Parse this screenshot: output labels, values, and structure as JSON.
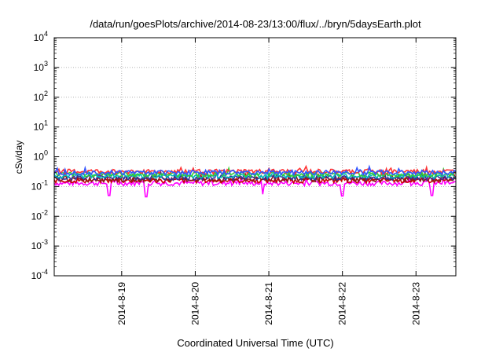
{
  "chart_data": {
    "type": "line",
    "title": "/data/run/goesPlots/archive/2014-08-23/13:00/flux/../bryn/5daysEarth.plot",
    "xlabel": "Coordinated Universal Time (UTC)",
    "ylabel": "cSv/day",
    "yscale": "log",
    "ylim": [
      0.0001,
      10000
    ],
    "xlim": [
      "2014-08-18 02:00",
      "2014-08-23 13:00"
    ],
    "y_ticks": [
      {
        "base": "10",
        "exp": "-4",
        "value": 0.0001
      },
      {
        "base": "10",
        "exp": "-3",
        "value": 0.001
      },
      {
        "base": "10",
        "exp": "-2",
        "value": 0.01
      },
      {
        "base": "10",
        "exp": "-1",
        "value": 0.1
      },
      {
        "base": "10",
        "exp": "0",
        "value": 1
      },
      {
        "base": "10",
        "exp": "1",
        "value": 10
      },
      {
        "base": "10",
        "exp": "2",
        "value": 100
      },
      {
        "base": "10",
        "exp": "3",
        "value": 1000
      },
      {
        "base": "10",
        "exp": "4",
        "value": 10000
      }
    ],
    "x_ticks": [
      {
        "label": "2014-8-19",
        "value": "2014-08-19 00:00"
      },
      {
        "label": "2014-8-20",
        "value": "2014-08-20 00:00"
      },
      {
        "label": "2014-8-21",
        "value": "2014-08-21 00:00"
      },
      {
        "label": "2014-8-22",
        "value": "2014-08-22 00:00"
      },
      {
        "label": "2014-8-23",
        "value": "2014-08-23 00:00"
      }
    ],
    "grid": true,
    "legend": "none",
    "series": [
      {
        "color": "#ff00ff",
        "level": 0.13,
        "dips": [
          [
            "2014-08-18 20:00",
            0.05
          ],
          [
            "2014-08-19 08:00",
            0.045
          ],
          [
            "2014-08-20 22:00",
            0.055
          ],
          [
            "2014-08-22 00:00",
            0.048
          ],
          [
            "2014-08-23 05:00",
            0.05
          ]
        ]
      },
      {
        "color": "#cc0000",
        "level": 0.16
      },
      {
        "color": "#8b1a1a",
        "level": 0.175
      },
      {
        "color": "#333399",
        "level": 0.2
      },
      {
        "color": "#00bbbb",
        "level": 0.23
      },
      {
        "color": "#33cc33",
        "level": 0.26
      },
      {
        "color": "#ff3333",
        "level": 0.32
      },
      {
        "color": "#3355ff",
        "level": 0.3
      }
    ]
  }
}
